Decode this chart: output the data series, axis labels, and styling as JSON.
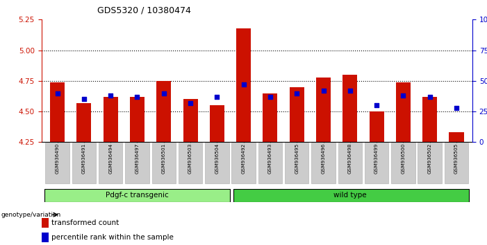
{
  "title": "GDS5320 / 10380474",
  "samples": [
    "GSM936490",
    "GSM936491",
    "GSM936494",
    "GSM936497",
    "GSM936501",
    "GSM936503",
    "GSM936504",
    "GSM936492",
    "GSM936493",
    "GSM936495",
    "GSM936496",
    "GSM936498",
    "GSM936499",
    "GSM936500",
    "GSM936502",
    "GSM936505"
  ],
  "red_values": [
    4.74,
    4.57,
    4.62,
    4.62,
    4.75,
    4.6,
    4.55,
    5.18,
    4.65,
    4.7,
    4.78,
    4.8,
    4.5,
    4.74,
    4.62,
    4.33
  ],
  "blue_values": [
    40,
    35,
    38,
    37,
    40,
    32,
    37,
    47,
    37,
    40,
    42,
    42,
    30,
    38,
    37,
    28
  ],
  "ylim_left": [
    4.25,
    5.25
  ],
  "ylim_right": [
    0,
    100
  ],
  "yticks_left": [
    4.25,
    4.5,
    4.75,
    5.0,
    5.25
  ],
  "yticks_right": [
    0,
    25,
    50,
    75,
    100
  ],
  "grid_values": [
    4.5,
    4.75,
    5.0
  ],
  "bar_color": "#cc1100",
  "dot_color": "#0000cc",
  "bar_bottom": 4.25,
  "group1_label": "Pdgf-c transgenic",
  "group2_label": "wild type",
  "group1_count": 7,
  "group2_count": 9,
  "genotype_label": "genotype/variation",
  "legend_red": "transformed count",
  "legend_blue": "percentile rank within the sample",
  "group1_color": "#99ee88",
  "group2_color": "#44cc44",
  "tick_bg_color": "#cccccc",
  "right_axis_color": "#0000cc",
  "left_axis_color": "#cc1100",
  "bg_color": "#ffffff"
}
